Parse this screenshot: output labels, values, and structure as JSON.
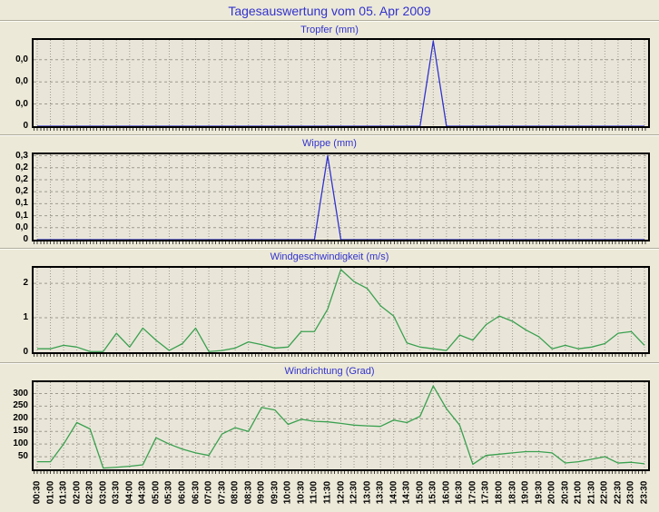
{
  "header": {
    "title": "Tagesauswertung vom 05. Apr 2009"
  },
  "colors": {
    "page_background": "#ece9d8",
    "plot_background": "#e9e6d9",
    "frame": "#000000",
    "grid": "#9d9a8d",
    "accent_text": "#3232cd",
    "rain_line": "#3232cd",
    "wind_line": "#3aa04f"
  },
  "chart_data": {
    "type": "line",
    "x_categories": [
      "00:30",
      "01:00",
      "01:30",
      "02:00",
      "02:30",
      "03:00",
      "03:30",
      "04:00",
      "04:30",
      "05:00",
      "05:30",
      "06:00",
      "06:30",
      "07:00",
      "07:30",
      "08:00",
      "08:30",
      "09:00",
      "09:30",
      "10:00",
      "10:30",
      "11:00",
      "11:30",
      "12:00",
      "12:30",
      "13:00",
      "13:30",
      "14:00",
      "14:30",
      "15:00",
      "15:30",
      "16:00",
      "16:30",
      "17:00",
      "17:30",
      "18:00",
      "18:30",
      "19:00",
      "19:30",
      "20:00",
      "20:30",
      "21:00",
      "21:30",
      "22:00",
      "22:30",
      "23:00",
      "23:30"
    ],
    "charts": [
      {
        "type": "line",
        "title": "Tropfer (mm)",
        "line_color": "#3232cd",
        "ylim": [
          0,
          0.08
        ],
        "y_ticks": [
          {
            "label": "0,0",
            "v": 0.0617
          },
          {
            "label": "0,0",
            "v": 0.0411
          },
          {
            "label": "0,0",
            "v": 0.0206
          },
          {
            "label": "0",
            "v": 0
          }
        ],
        "values": [
          0,
          0,
          0,
          0,
          0,
          0,
          0,
          0,
          0,
          0,
          0,
          0,
          0,
          0,
          0,
          0,
          0,
          0,
          0,
          0,
          0,
          0,
          0,
          0,
          0,
          0,
          0,
          0,
          0,
          0,
          0.079,
          0,
          0,
          0,
          0,
          0,
          0,
          0,
          0,
          0,
          0,
          0,
          0,
          0,
          0,
          0,
          0
        ]
      },
      {
        "type": "line",
        "title": "Wippe (mm)",
        "line_color": "#3232cd",
        "ylim": [
          0,
          0.305
        ],
        "y_ticks": [
          {
            "label": "0,3",
            "v": 0.3
          },
          {
            "label": "0,2",
            "v": 0.2571
          },
          {
            "label": "0,2",
            "v": 0.2143
          },
          {
            "label": "0,2",
            "v": 0.1714
          },
          {
            "label": "0,1",
            "v": 0.1286
          },
          {
            "label": "0,1",
            "v": 0.0857
          },
          {
            "label": "0,0",
            "v": 0.0429
          },
          {
            "label": "0",
            "v": 0
          }
        ],
        "values": [
          0,
          0,
          0,
          0,
          0,
          0,
          0,
          0,
          0,
          0,
          0,
          0,
          0,
          0,
          0,
          0,
          0,
          0,
          0,
          0,
          0,
          0,
          0.3,
          0,
          0,
          0,
          0,
          0,
          0,
          0,
          0,
          0,
          0,
          0,
          0,
          0,
          0,
          0,
          0,
          0,
          0,
          0,
          0,
          0,
          0,
          0,
          0
        ]
      },
      {
        "type": "line",
        "title": "Windgeschwindigkeit (m/s)",
        "line_color": "#3aa04f",
        "ylim": [
          0,
          2.45
        ],
        "y_ticks": [
          {
            "label": "2",
            "v": 2
          },
          {
            "label": "1",
            "v": 1
          },
          {
            "label": "0",
            "v": 0
          }
        ],
        "values": [
          0.1,
          0.1,
          0.2,
          0.15,
          0.02,
          0.02,
          0.55,
          0.15,
          0.7,
          0.35,
          0.05,
          0.25,
          0.7,
          0.02,
          0.05,
          0.12,
          0.3,
          0.22,
          0.12,
          0.15,
          0.6,
          0.6,
          1.25,
          2.4,
          2.05,
          1.85,
          1.35,
          1.05,
          0.27,
          0.15,
          0.1,
          0.05,
          0.5,
          0.35,
          0.8,
          1.05,
          0.9,
          0.65,
          0.45,
          0.1,
          0.2,
          0.1,
          0.15,
          0.25,
          0.55,
          0.6,
          0.2
        ]
      },
      {
        "type": "line",
        "title": "Windrichtung (Grad)",
        "line_color": "#3aa04f",
        "ylim": [
          0,
          345
        ],
        "y_ticks": [
          {
            "label": "300",
            "v": 300
          },
          {
            "label": "250",
            "v": 250
          },
          {
            "label": "200",
            "v": 200
          },
          {
            "label": "150",
            "v": 150
          },
          {
            "label": "100",
            "v": 100
          },
          {
            "label": "50",
            "v": 50
          }
        ],
        "values": [
          30,
          30,
          100,
          185,
          160,
          5,
          8,
          12,
          18,
          125,
          100,
          80,
          65,
          55,
          140,
          165,
          150,
          245,
          235,
          178,
          198,
          190,
          188,
          182,
          175,
          172,
          170,
          195,
          185,
          210,
          330,
          240,
          175,
          20,
          55,
          60,
          65,
          70,
          70,
          65,
          25,
          30,
          40,
          50,
          25,
          28,
          22
        ]
      }
    ]
  }
}
